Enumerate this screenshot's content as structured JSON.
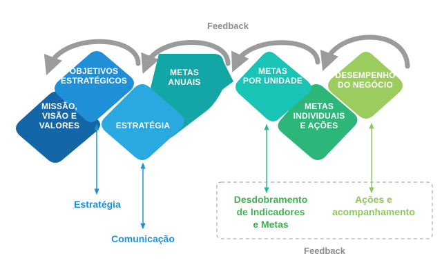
{
  "feedback_top": "Feedback",
  "feedback_bottom": "Feedback",
  "shapes": {
    "missao": [
      "MISSÃO,",
      "VISÃO E",
      "VALORES"
    ],
    "objetivos": [
      "OBJETIVOS",
      "ESTRATÉGICOS"
    ],
    "estrategia": [
      "ESTRATÉGIA"
    ],
    "metas_anuais": [
      "METAS",
      "ANUAIS"
    ],
    "metas_unidade": [
      "METAS",
      "POR UNIDADE"
    ],
    "metas_individuais": [
      "METAS",
      "INDIVIDUAIS",
      "E AÇÕES"
    ],
    "desempenho": [
      "DESEMPENHO",
      "DO NEGÓCIO"
    ]
  },
  "captions": {
    "estrategia": [
      "Estratégia"
    ],
    "comunicacao": [
      "Comunicação"
    ],
    "desdobramento": [
      "Desdobramento",
      "de Indicadores",
      "e Metas"
    ],
    "acoes": [
      "Ações e",
      "acompanhamento"
    ]
  },
  "colors": {
    "missao": "#1566a6",
    "objetivos": "#1f8fd8",
    "estrategia": "#2aa8e0",
    "metas_anuais": "#13a6a6",
    "metas_unidade": "#19c4b6",
    "metas_individuais": "#2cb67a",
    "desempenho": "#9ccb5e",
    "arrow_gray": "#9b9b9b",
    "blue_text": "#1f8fd8",
    "green_text": "#3fb34f",
    "green_light": "#8cc95a"
  }
}
